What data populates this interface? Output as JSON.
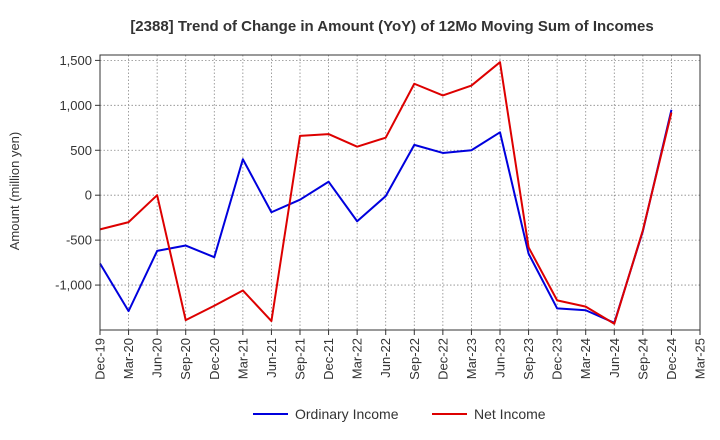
{
  "chart_data": {
    "type": "line",
    "title": "[2388]  Trend of Change in Amount (YoY) of 12Mo Moving Sum of Incomes",
    "xlabel": "",
    "ylabel": "Amount (million yen)",
    "ylim": [
      -1500,
      1560
    ],
    "yticks": [
      1500,
      1000,
      500,
      0,
      -500,
      -1000
    ],
    "ytick_labels": [
      "1,500",
      "1,000",
      "500",
      "0",
      "-500",
      "-1,000"
    ],
    "categories": [
      "Dec-19",
      "Mar-20",
      "Jun-20",
      "Sep-20",
      "Dec-20",
      "Mar-21",
      "Jun-21",
      "Sep-21",
      "Dec-21",
      "Mar-22",
      "Jun-22",
      "Sep-22",
      "Dec-22",
      "Mar-23",
      "Jun-23",
      "Sep-23",
      "Dec-23",
      "Mar-24",
      "Jun-24",
      "Sep-24",
      "Dec-24",
      "Mar-25"
    ],
    "grid": true,
    "legend_position": "bottom",
    "series": [
      {
        "name": "Ordinary Income",
        "color": "#0000dd",
        "values": [
          -760,
          -1290,
          -620,
          -560,
          -690,
          400,
          -190,
          -50,
          150,
          -290,
          -10,
          560,
          470,
          500,
          700,
          -650,
          -1260,
          -1280,
          -1420,
          -400,
          950,
          null
        ]
      },
      {
        "name": "Net Income",
        "color": "#dd0000",
        "values": [
          -380,
          -300,
          0,
          -1390,
          -1230,
          -1060,
          -1400,
          660,
          680,
          540,
          640,
          1240,
          1110,
          1220,
          1480,
          -580,
          -1170,
          -1240,
          -1430,
          -390,
          920,
          null
        ]
      }
    ]
  }
}
